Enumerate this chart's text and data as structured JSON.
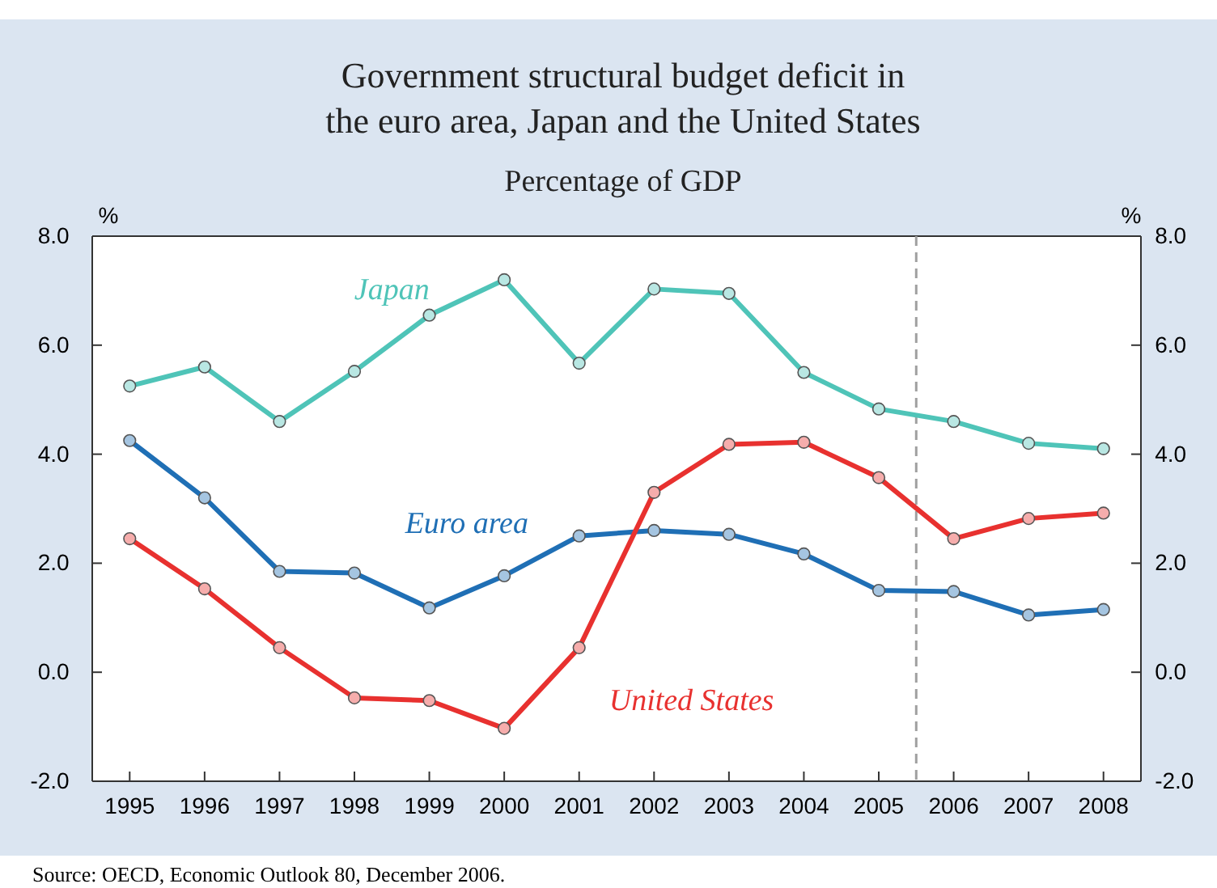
{
  "chart_data": {
    "type": "line",
    "title": "Government structural budget deficit in the euro area, Japan and the United States",
    "subtitle": "Percentage of GDP",
    "ylabel": "%",
    "y2label": "%",
    "x": [
      1995,
      1996,
      1997,
      1998,
      1999,
      2000,
      2001,
      2002,
      2003,
      2004,
      2005,
      2006,
      2007,
      2008
    ],
    "xlim": [
      1994.5,
      2008.5
    ],
    "xticks": [
      1995,
      1996,
      1997,
      1998,
      1999,
      2000,
      2001,
      2002,
      2003,
      2004,
      2005,
      2006,
      2007,
      2008
    ],
    "ylim": [
      -2,
      8
    ],
    "yticks": [
      {
        "value": -2,
        "label": "-2.0"
      },
      {
        "value": 0,
        "label": "0.0"
      },
      {
        "value": 2,
        "label": "2.0"
      },
      {
        "value": 4,
        "label": "4.0"
      },
      {
        "value": 6,
        "label": "6.0"
      },
      {
        "value": 8,
        "label": "8.0"
      }
    ],
    "y2lim": [
      -2,
      8
    ],
    "y2ticks": [
      {
        "value": -2,
        "label": "-2.0"
      },
      {
        "value": 0,
        "label": "0.0"
      },
      {
        "value": 2,
        "label": "2.0"
      },
      {
        "value": 4,
        "label": "4.0"
      },
      {
        "value": 6,
        "label": "6.0"
      },
      {
        "value": 8,
        "label": "8.0"
      }
    ],
    "series": [
      {
        "name": "Japan",
        "color": "#4fc4b8",
        "values": [
          5.25,
          5.6,
          4.6,
          5.52,
          6.55,
          7.2,
          5.67,
          7.03,
          6.95,
          5.5,
          4.83,
          4.6,
          4.2,
          4.1
        ]
      },
      {
        "name": "Euro area",
        "color": "#1f6fb5",
        "values": [
          4.25,
          3.2,
          1.85,
          1.82,
          1.18,
          1.77,
          2.5,
          2.6,
          2.53,
          2.17,
          1.5,
          1.48,
          1.05,
          1.15
        ]
      },
      {
        "name": "United States",
        "color": "#e8312f",
        "values": [
          2.45,
          1.53,
          0.45,
          -0.47,
          -0.52,
          -1.03,
          0.45,
          3.3,
          4.18,
          4.22,
          3.57,
          2.45,
          2.82,
          2.92
        ]
      }
    ],
    "ref_lines": [
      {
        "axis": "x",
        "value": 2005.5,
        "color": "#a0a0a0",
        "line_style": "dashed"
      }
    ],
    "marker": "circle",
    "line_style": "solid",
    "grid": false,
    "annotations": [
      "Source: OECD, Economic Outlook 80, December 2006."
    ]
  }
}
